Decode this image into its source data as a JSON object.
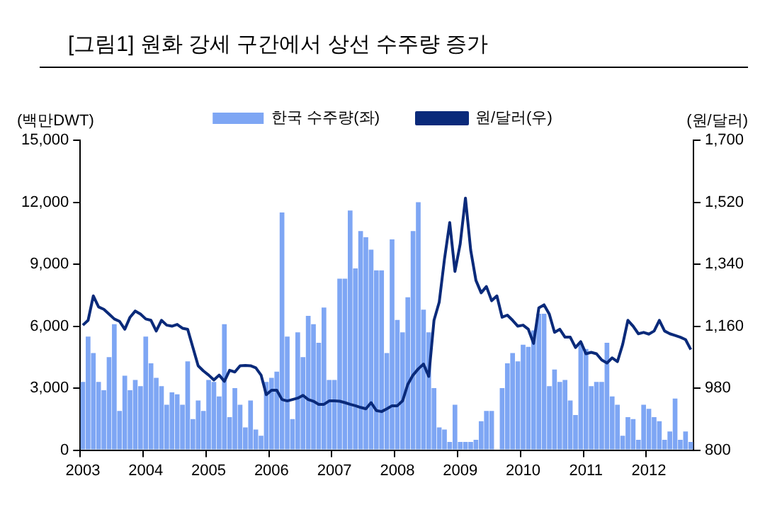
{
  "chart_data": {
    "type": "bar",
    "title": "[그림1]    원화 강세 구간에서 상선 수주량 증가",
    "ylabel": "(백만DWT)",
    "y2label": "(원/달러)",
    "categories": [
      "2003",
      null,
      null,
      null,
      null,
      null,
      null,
      null,
      null,
      null,
      null,
      null,
      "2004",
      null,
      null,
      null,
      null,
      null,
      null,
      null,
      null,
      null,
      null,
      null,
      "2005",
      null,
      null,
      null,
      null,
      null,
      null,
      null,
      null,
      null,
      null,
      null,
      "2006",
      null,
      null,
      null,
      null,
      null,
      null,
      null,
      null,
      null,
      null,
      null,
      "2007",
      null,
      null,
      null,
      null,
      null,
      null,
      null,
      null,
      null,
      null,
      null,
      "2008",
      null,
      null,
      null,
      null,
      null,
      null,
      null,
      null,
      null,
      null,
      null,
      "2009",
      null,
      null,
      null,
      null,
      null,
      null,
      null,
      null,
      null,
      null,
      null,
      "2010",
      null,
      null,
      null,
      null,
      null,
      null,
      null,
      null,
      null,
      null,
      null,
      "2011",
      null,
      null,
      null,
      null,
      null,
      null,
      null,
      null,
      null,
      null,
      null,
      "2012",
      null,
      null,
      null,
      null,
      null,
      null,
      null,
      null
    ],
    "series": [
      {
        "name": "한국 수주량(좌)",
        "color": "#7ea6f4",
        "values": [
          3300,
          5500,
          4700,
          3300,
          2900,
          4500,
          6100,
          1900,
          3600,
          2900,
          3400,
          3100,
          5500,
          4200,
          3500,
          3100,
          2200,
          2800,
          2700,
          2200,
          4300,
          1500,
          2400,
          1900,
          3400,
          3300,
          2600,
          6100,
          1600,
          3000,
          2200,
          1100,
          2400,
          1000,
          700,
          3300,
          3500,
          3800,
          11500,
          5500,
          1500,
          5700,
          4500,
          6500,
          6100,
          5200,
          6900,
          3400,
          3400,
          8300,
          8300,
          11600,
          8800,
          10600,
          10300,
          9700,
          8700,
          8700,
          4700,
          10200,
          6300,
          5700,
          7400,
          10600,
          12000,
          6800,
          5700,
          3000,
          1100,
          1000,
          400,
          2200,
          400,
          400,
          400,
          500,
          1400,
          1900,
          1900,
          0,
          3000,
          4200,
          4700,
          4300,
          5100,
          5000,
          5800,
          6600,
          6600,
          3100,
          3900,
          3300,
          3400,
          2400,
          1700,
          5200,
          4900,
          3100,
          3300,
          3300,
          5200,
          2600,
          2200,
          700,
          1600,
          1500,
          500,
          2200,
          2000,
          1600,
          1400,
          500,
          900,
          2500,
          500,
          900,
          400
        ]
      },
      {
        "name": "원/달러(우)",
        "type": "line",
        "axis": "y2",
        "color": "#0a2a7a",
        "values": [
          1163,
          1177,
          1248,
          1216,
          1209,
          1195,
          1181,
          1174,
          1151,
          1186,
          1204,
          1195,
          1181,
          1177,
          1146,
          1177,
          1163,
          1160,
          1165,
          1154,
          1151,
          1098,
          1045,
          1030,
          1018,
          1004,
          1018,
          1000,
          1032,
          1027,
          1045,
          1046,
          1045,
          1039,
          1018,
          961,
          974,
          974,
          947,
          943,
          947,
          951,
          959,
          947,
          942,
          933,
          933,
          943,
          943,
          942,
          938,
          933,
          929,
          924,
          920,
          938,
          915,
          912,
          920,
          929,
          929,
          943,
          991,
          1018,
          1036,
          1050,
          1014,
          1177,
          1230,
          1355,
          1461,
          1319,
          1399,
          1532,
          1381,
          1293,
          1257,
          1275,
          1234,
          1248,
          1186,
          1192,
          1177,
          1160,
          1163,
          1151,
          1110,
          1213,
          1222,
          1195,
          1142,
          1151,
          1128,
          1128,
          1098,
          1115,
          1080,
          1084,
          1080,
          1062,
          1053,
          1068,
          1057,
          1107,
          1177,
          1160,
          1138,
          1142,
          1137,
          1146,
          1177,
          1146,
          1138,
          1133,
          1128,
          1121,
          1092
        ]
      }
    ],
    "ylim": [
      0,
      15000
    ],
    "yticks": [
      0,
      {
        "value": 3000,
        "label": "3,000"
      },
      {
        "value": 6000,
        "label": "6,000"
      },
      {
        "value": 9000,
        "label": "9,000"
      },
      {
        "value": 12000,
        "label": "12,000"
      },
      {
        "value": 15000,
        "label": "15,000"
      }
    ],
    "y2lim": [
      800,
      1700
    ],
    "y2ticks": [
      800,
      980,
      {
        "value": 1160,
        "label": "1,160"
      },
      {
        "value": 1340,
        "label": "1,340"
      },
      {
        "value": 1520,
        "label": "1,520"
      },
      {
        "value": 1700,
        "label": "1,700"
      }
    ],
    "grid": false,
    "legend": "top"
  }
}
